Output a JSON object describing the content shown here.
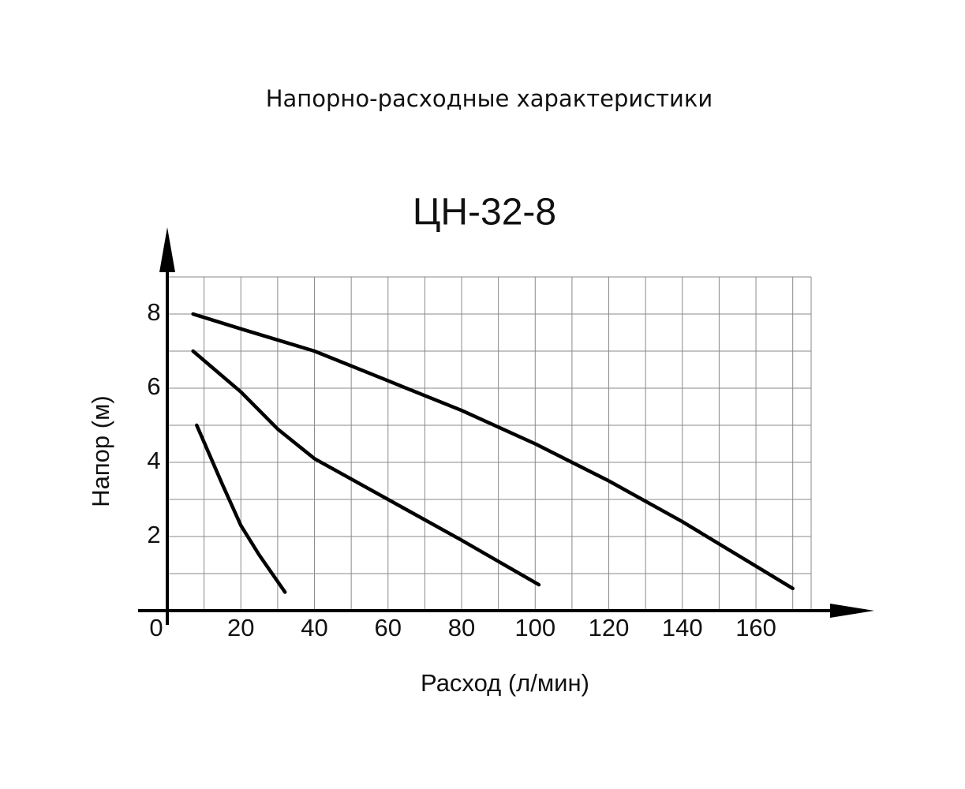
{
  "chart_data": {
    "type": "line",
    "heading": "Напорно-расходные характеристики",
    "title": "ЦН-32-8",
    "x_label": "Расход (л/мин)",
    "y_label": "Напор (м)",
    "xlim": [
      0,
      175
    ],
    "ylim": [
      0,
      9
    ],
    "xticks": [
      0,
      20,
      40,
      60,
      80,
      100,
      120,
      140,
      160
    ],
    "yticks": [
      2,
      4,
      6,
      8
    ],
    "x_gridlines": [
      10,
      20,
      30,
      40,
      50,
      60,
      70,
      80,
      90,
      100,
      110,
      120,
      130,
      140,
      150,
      160,
      170,
      175
    ],
    "y_gridlines": [
      1,
      2,
      3,
      4,
      5,
      6,
      7,
      8,
      9
    ],
    "grid": true,
    "series": [
      {
        "color": "#000000",
        "x": [
          7,
          20,
          40,
          60,
          80,
          100,
          120,
          140,
          160,
          170
        ],
        "values": [
          8,
          7.6,
          7,
          6.2,
          5.4,
          4.5,
          3.5,
          2.4,
          1.2,
          0.6
        ]
      },
      {
        "color": "#000000",
        "x": [
          7,
          20,
          30,
          40,
          60,
          80,
          101
        ],
        "values": [
          7,
          5.9,
          4.9,
          4.1,
          3,
          1.9,
          0.7
        ]
      },
      {
        "color": "#000000",
        "x": [
          8,
          15,
          20,
          25,
          32
        ],
        "values": [
          5,
          3.4,
          2.3,
          1.5,
          0.5
        ]
      }
    ]
  }
}
